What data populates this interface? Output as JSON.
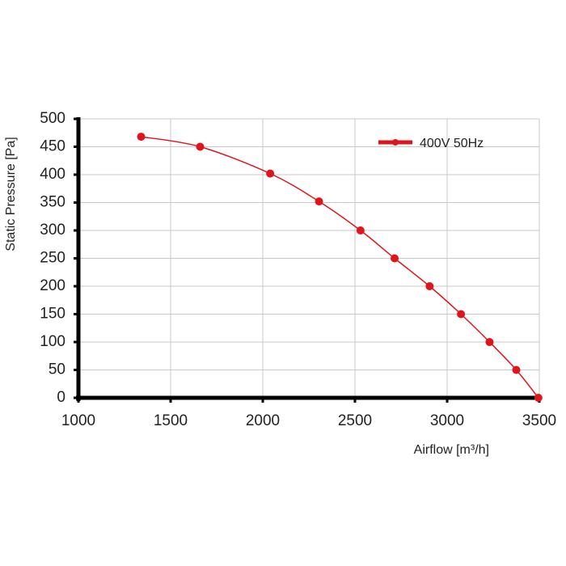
{
  "chart_data": {
    "type": "line",
    "x_label": "Airflow [m³/h]",
    "y_label": "Static Pressure [Pa]",
    "series": [
      {
        "name": "400V 50Hz",
        "color": "#e0141b",
        "x": [
          1340,
          1660,
          2040,
          2305,
          2530,
          2715,
          2905,
          3075,
          3230,
          3375,
          3495
        ],
        "values": [
          468,
          450,
          402,
          352,
          300,
          250,
          200,
          150,
          100,
          50,
          0
        ]
      }
    ],
    "xlim": [
      1000,
      3500
    ],
    "xticks": [
      1000,
      1500,
      2000,
      2500,
      3000,
      3500
    ],
    "ylim": [
      0,
      500
    ],
    "yticks": [
      0,
      50,
      100,
      150,
      200,
      250,
      300,
      350,
      400,
      450,
      500
    ],
    "grid": true,
    "legend": "top-right",
    "legend_color": "#d0208a"
  }
}
